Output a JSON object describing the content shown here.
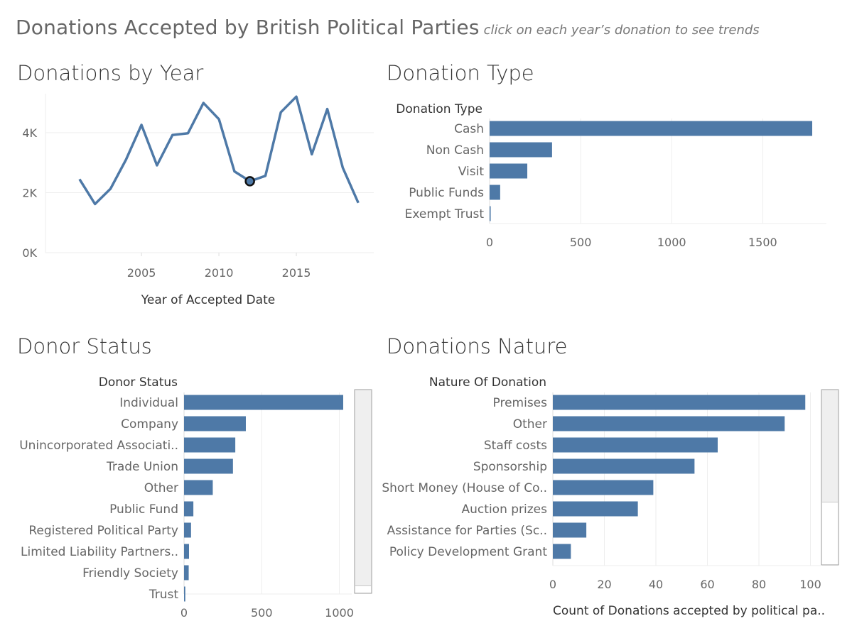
{
  "header": {
    "title": "Donations Accepted by British Political Parties",
    "subtitle": "click on each year’s donation to see trends"
  },
  "panels": {
    "by_year": "Donations by Year",
    "type": "Donation Type",
    "status": "Donor Status",
    "nature": "Donations Nature"
  },
  "colors": {
    "bar": "#4e79a7",
    "line": "#4e79a7",
    "grid": "#eeeeee"
  },
  "chart_data": [
    {
      "id": "year",
      "type": "line",
      "title": "Donations by Year",
      "xlabel": "Year of Accepted Date",
      "ylabel": "",
      "x": [
        2001,
        2002,
        2003,
        2004,
        2005,
        2006,
        2007,
        2008,
        2009,
        2010,
        2011,
        2012,
        2013,
        2014,
        2015,
        2016,
        2017,
        2018,
        2019
      ],
      "values": [
        2450,
        1620,
        2130,
        3100,
        4260,
        2910,
        3920,
        3980,
        4990,
        4450,
        2710,
        2380,
        2560,
        4680,
        5200,
        3280,
        4790,
        2830,
        1660
      ],
      "xticks": [
        2005,
        2010,
        2015
      ],
      "yticks": [
        0,
        2000,
        4000
      ],
      "ytick_labels": [
        "0K",
        "2K",
        "4K"
      ],
      "xlim": [
        1998.8,
        2020
      ],
      "ylim": [
        0,
        5300
      ],
      "selected_x": 2012
    },
    {
      "id": "type",
      "type": "bar",
      "orientation": "horizontal",
      "title": "Donation Type",
      "category_header": "Donation Type",
      "categories": [
        "Cash",
        "Non Cash",
        "Visit",
        "Public Funds",
        "Exempt Trust"
      ],
      "values": [
        1772,
        343,
        207,
        58,
        6
      ],
      "xticks": [
        0,
        500,
        1000,
        1500
      ],
      "xlim": [
        0,
        1850
      ]
    },
    {
      "id": "status",
      "type": "bar",
      "orientation": "horizontal",
      "title": "Donor Status",
      "category_header": "Donor Status",
      "categories": [
        "Individual",
        "Company",
        "Unincorporated Associati..",
        "Trade Union",
        "Other",
        "Public Fund",
        "Registered Political Party",
        "Limited Liability Partners..",
        "Friendly Society",
        "Trust"
      ],
      "values": [
        1025,
        398,
        330,
        315,
        185,
        60,
        45,
        32,
        30,
        8
      ],
      "xticks": [
        0,
        500,
        1000
      ],
      "xlim": [
        0,
        1080
      ]
    },
    {
      "id": "nature",
      "type": "bar",
      "orientation": "horizontal",
      "title": "Donations Nature",
      "category_header": "Nature Of Donation",
      "categories": [
        "Premises",
        "Other",
        "Staff costs",
        "Sponsorship",
        "Short Money (House of Co..",
        "Auction prizes",
        "Assistance for Parties (Sc..",
        "Policy Development Grant"
      ],
      "values": [
        98,
        90,
        64,
        55,
        39,
        33,
        13,
        7
      ],
      "xticks": [
        0,
        20,
        40,
        60,
        80,
        100
      ],
      "xlim": [
        0,
        104
      ],
      "xlabel": "Count of Donations accepted by political pa.."
    }
  ]
}
